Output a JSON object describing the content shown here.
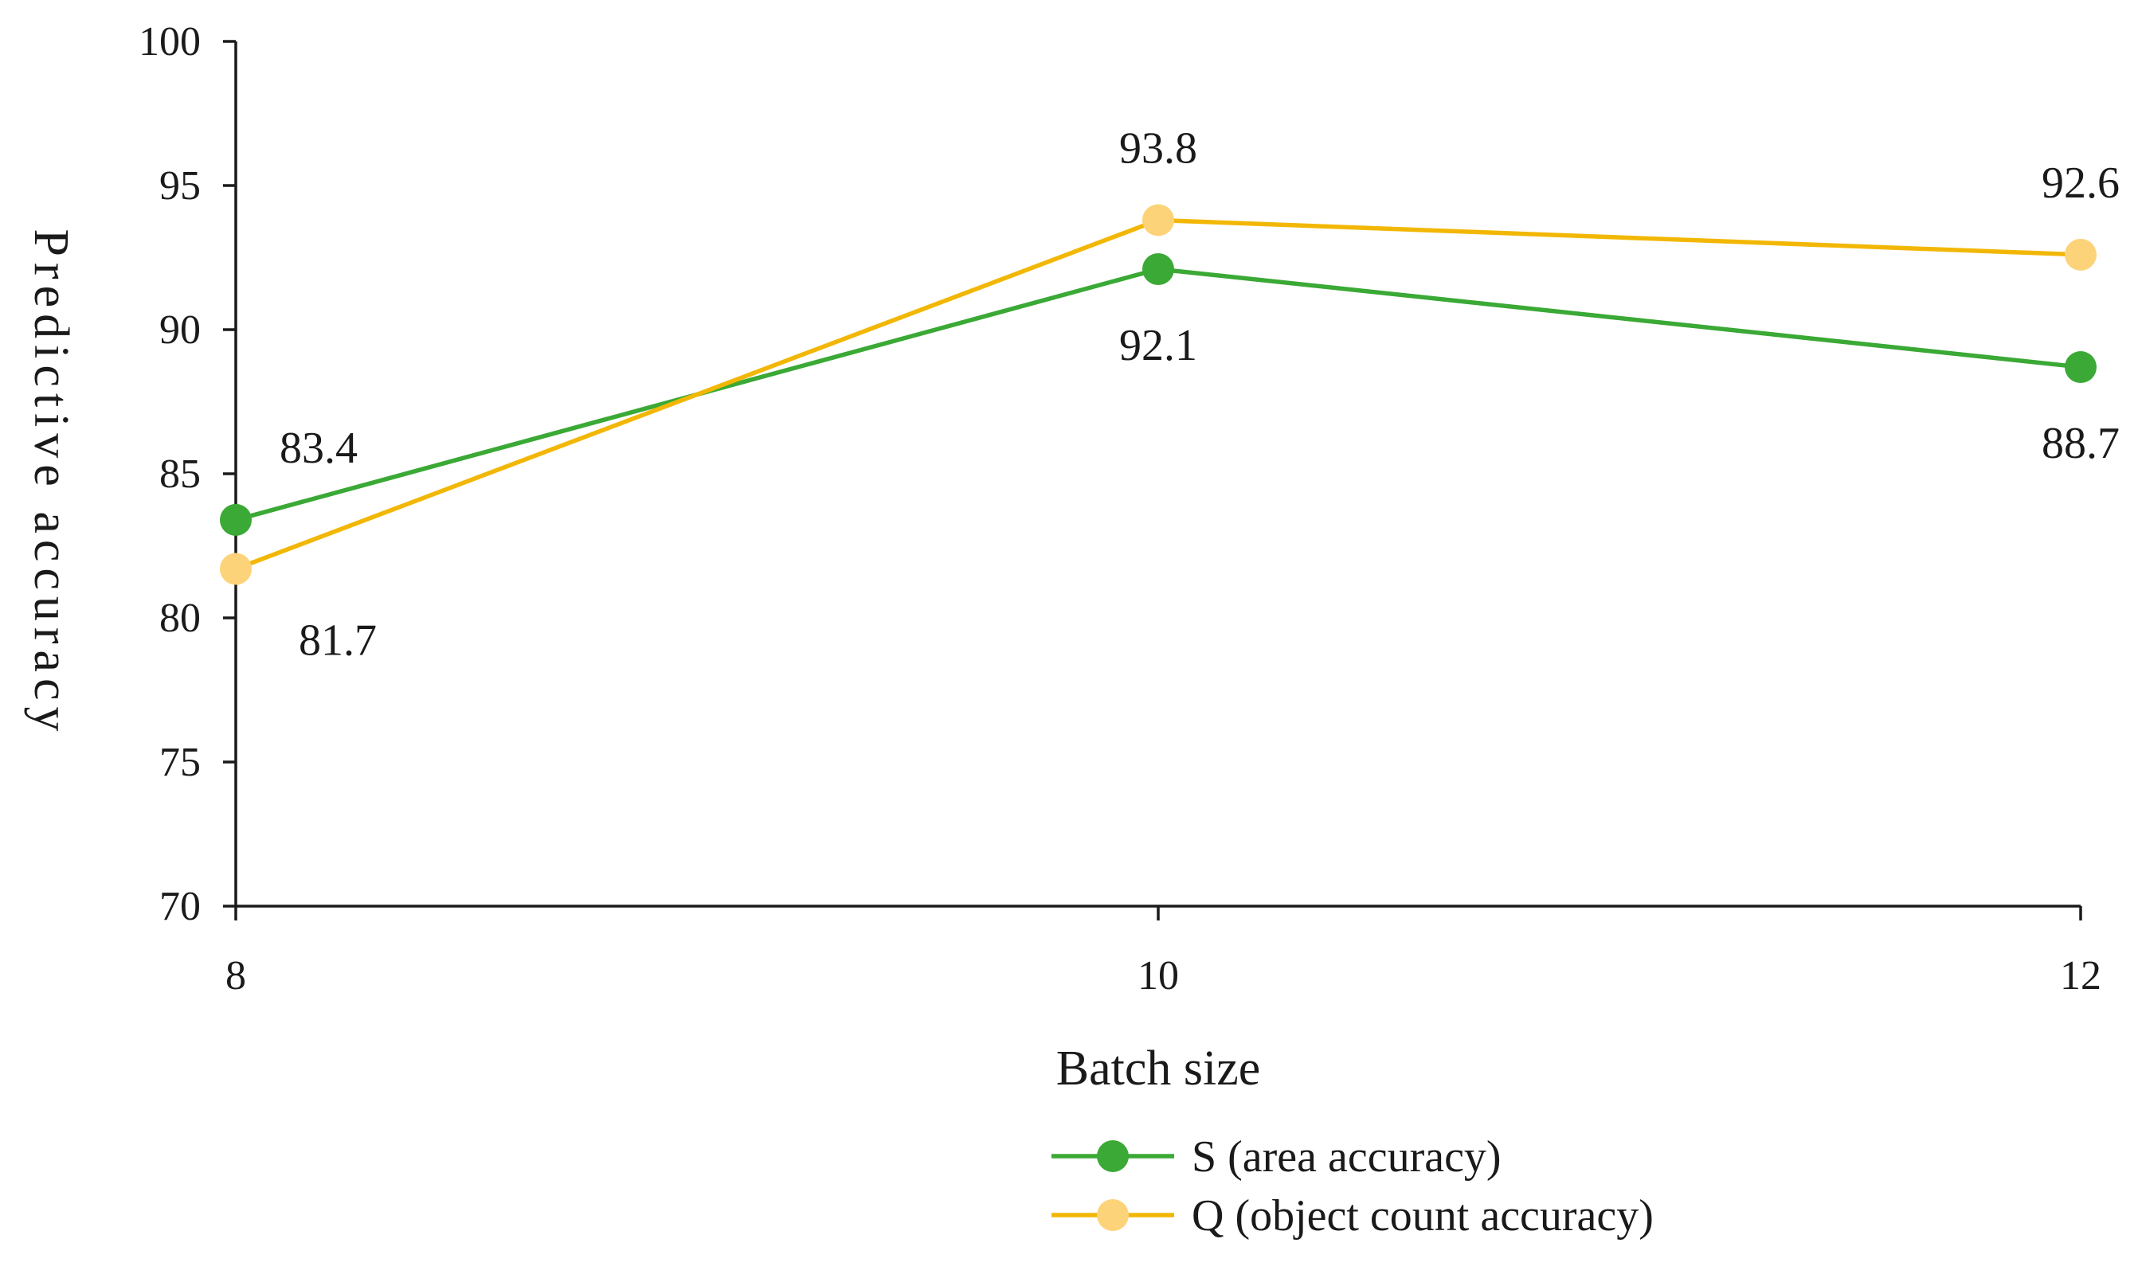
{
  "chart_data": {
    "type": "line",
    "title": "",
    "xlabel": "Batch size",
    "ylabel": "Predictive accuracy",
    "x": [
      8,
      10,
      12
    ],
    "x_tick_labels": [
      "8",
      "10",
      "12"
    ],
    "ylim": [
      70,
      100
    ],
    "y_ticks": [
      70,
      75,
      80,
      85,
      90,
      95,
      100
    ],
    "y_tick_labels": [
      "70",
      "75",
      "80",
      "85",
      "90",
      "95",
      "100"
    ],
    "grid": false,
    "legend_position": "bottom",
    "series": [
      {
        "name": "S (area accuracy)",
        "values": [
          83.4,
          92.1,
          88.7
        ],
        "data_labels": [
          "83.4",
          "92.1",
          "88.7"
        ],
        "label_positions": [
          "above-right",
          "below",
          "below"
        ],
        "color": "#3aa935"
      },
      {
        "name": "Q (object count accuracy)",
        "values": [
          81.7,
          93.8,
          92.6
        ],
        "data_labels": [
          "81.7",
          "93.8",
          "92.6"
        ],
        "label_positions": [
          "below-right",
          "above",
          "above"
        ],
        "color": "#f2b705",
        "marker_color": "#fdd37a"
      }
    ]
  }
}
